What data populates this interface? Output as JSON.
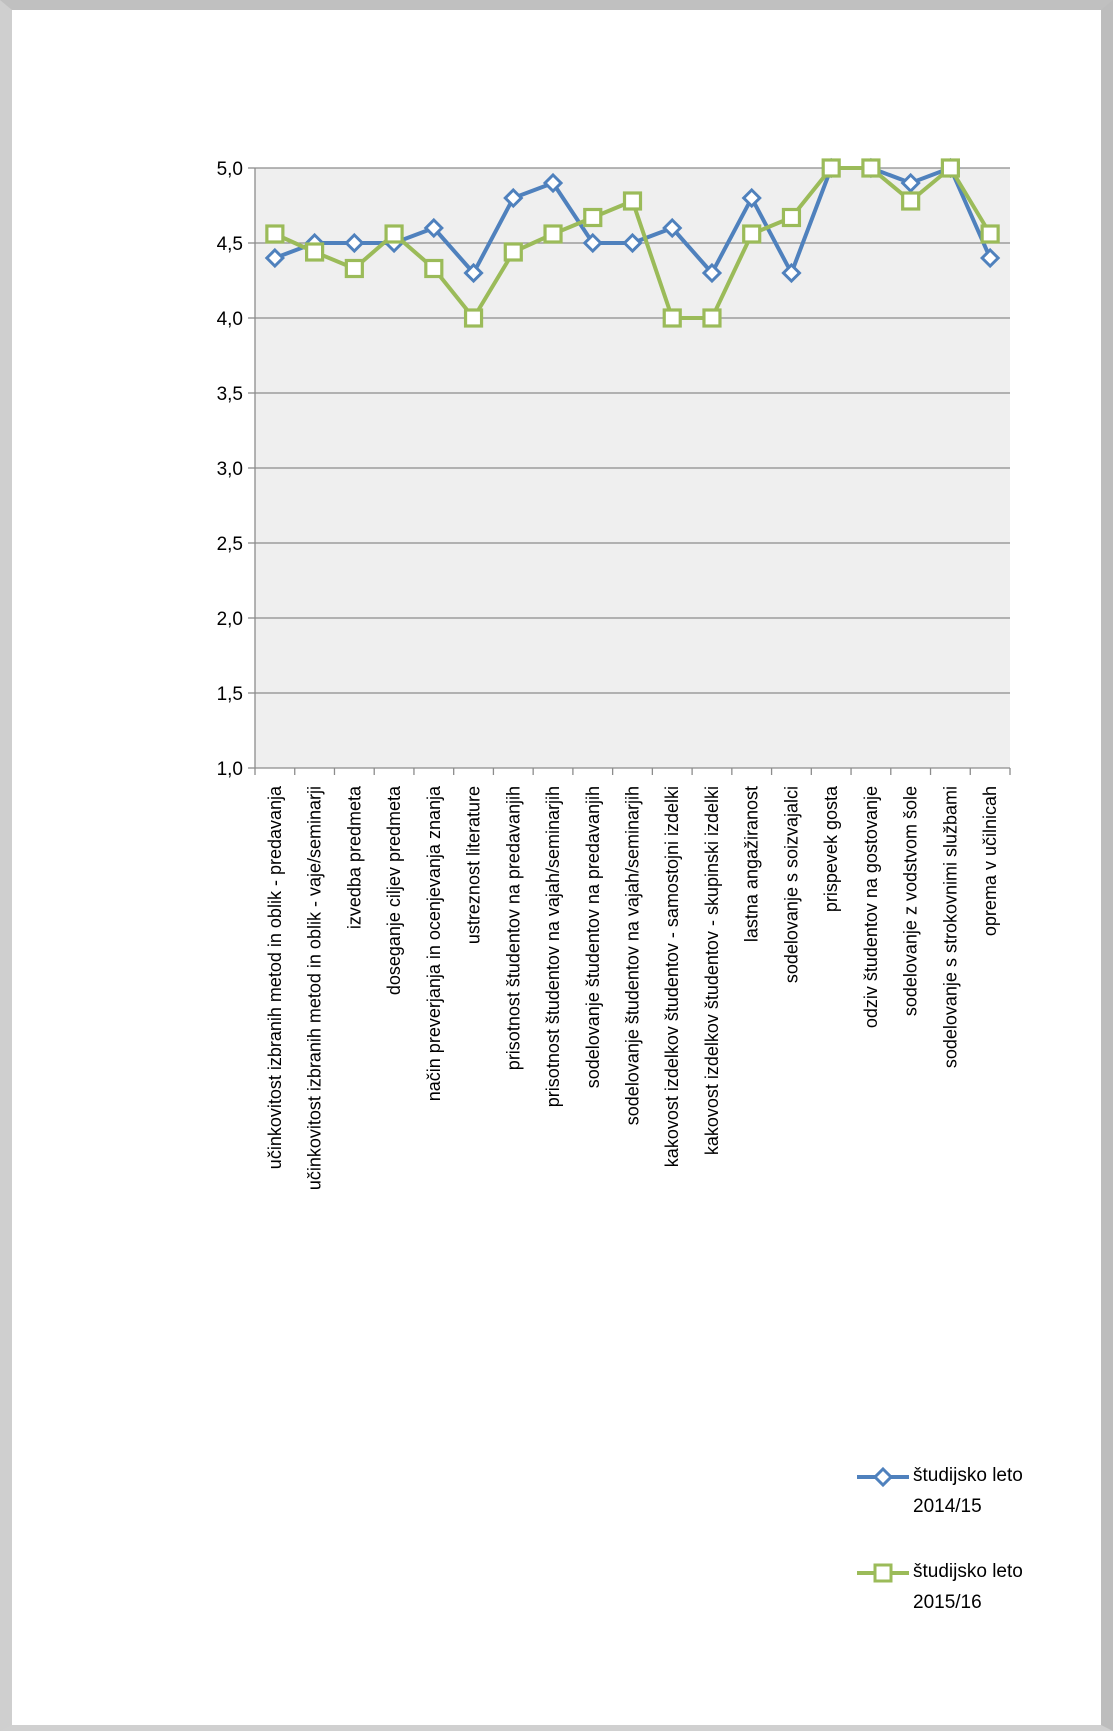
{
  "chart_data": {
    "type": "line",
    "ylim": [
      1.0,
      5.0
    ],
    "yticks": [
      "1,0",
      "1,5",
      "2,0",
      "2,5",
      "3,0",
      "3,5",
      "4,0",
      "4,5",
      "5,0"
    ],
    "grid": true,
    "legend_position": "bottom-right",
    "categories": [
      "učinkovitost izbranih metod in oblik - predavanja",
      "učinkovitost izbranih metod in oblik - vaje/seminarji",
      "izvedba predmeta",
      "doseganje ciljev predmeta",
      "način preverjanja in ocenjevanja znanja",
      "ustreznost literature",
      "prisotnost študentov na predavanjih",
      "prisotnost študentov na vajah/seminarjih",
      "sodelovanje študentov na predavanjih",
      "sodelovanje študentov na vajah/seminarjih",
      "kakovost izdelkov študentov - samostojni izdelki",
      "kakovost izdelkov študentov - skupinski izdelki",
      "lastna angažiranost",
      "sodelovanje s soizvajalci",
      "prispevek gosta",
      "odziv študentov na gostovanje",
      "sodelovanje z vodstvom šole",
      "sodelovanje s strokovnimi službami",
      "oprema v učilnicah"
    ],
    "series": [
      {
        "name": "študijsko leto 2014/15",
        "color": "#4f81bd",
        "marker": "diamond",
        "values": [
          4.4,
          4.5,
          4.5,
          4.5,
          4.6,
          4.3,
          4.8,
          4.9,
          4.5,
          4.5,
          4.6,
          4.3,
          4.8,
          4.3,
          5.0,
          5.0,
          4.9,
          5.0,
          4.4
        ]
      },
      {
        "name": "študijsko leto 2015/16",
        "color": "#9bbb59",
        "marker": "square",
        "values": [
          4.56,
          4.44,
          4.33,
          4.56,
          4.33,
          4.0,
          4.44,
          4.56,
          4.67,
          4.78,
          4.0,
          4.0,
          4.56,
          4.67,
          5.0,
          5.0,
          4.78,
          5.0,
          4.56
        ]
      }
    ]
  },
  "legend": {
    "items": [
      {
        "line1": "študijsko leto",
        "line2": "2014/15"
      },
      {
        "line1": "študijsko leto",
        "line2": "2015/16"
      }
    ]
  }
}
